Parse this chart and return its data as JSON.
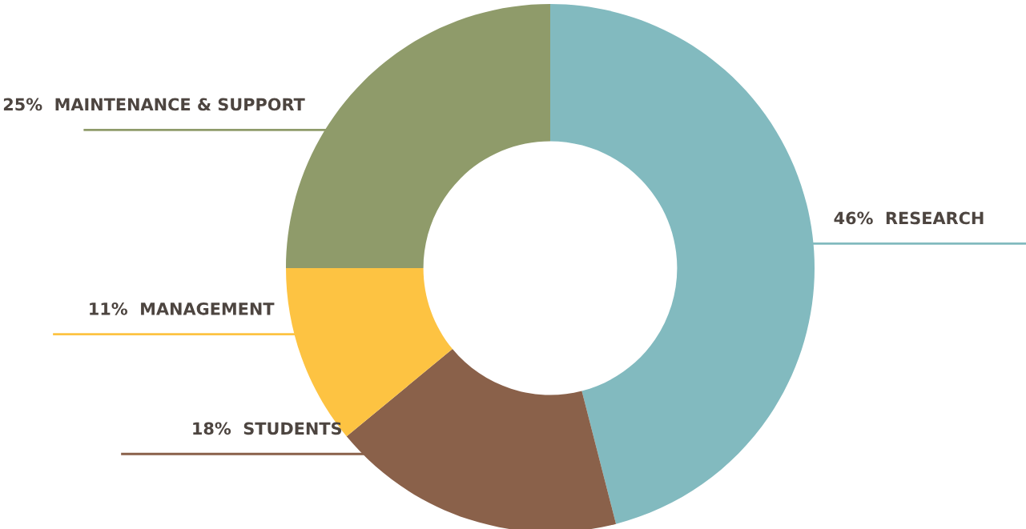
{
  "chart_data": {
    "type": "donut",
    "categories": [
      "RESEARCH",
      "STUDENTS",
      "MANAGEMENT",
      "MAINTENANCE & SUPPORT"
    ],
    "values": [
      46,
      18,
      11,
      25
    ],
    "value_labels": [
      "46%",
      "18%",
      "11%",
      "25%"
    ],
    "colors": [
      "#82babf",
      "#8a614a",
      "#fdc342",
      "#8f9b6a"
    ]
  }
}
